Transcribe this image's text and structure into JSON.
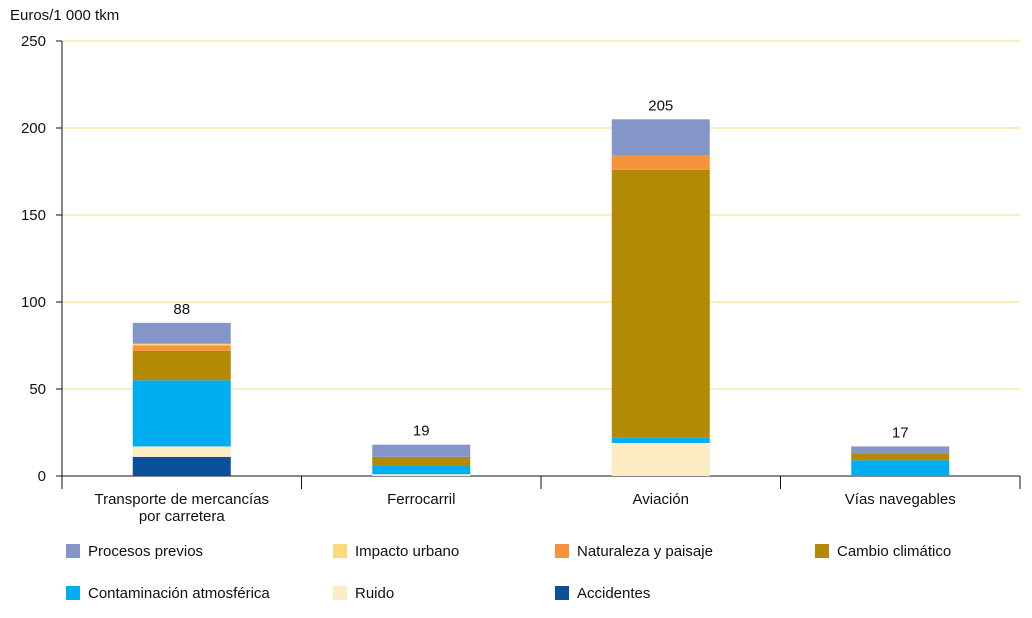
{
  "chart_data": {
    "type": "bar",
    "stacked": true,
    "ylabel": "Euros/1 000  tkm",
    "ylim": [
      0,
      250
    ],
    "yticks": [
      0,
      50,
      100,
      150,
      200,
      250
    ],
    "grid": true,
    "categories": [
      "Transporte de mercancías\npor carretera",
      "Ferrocarril",
      "Aviación",
      "Vías navegables"
    ],
    "totals": [
      "88",
      "19",
      "205",
      "17"
    ],
    "series": [
      {
        "name": "Accidentes",
        "color": "#0b4f9c",
        "values": [
          11,
          0,
          0,
          0
        ]
      },
      {
        "name": "Ruido",
        "color": "#fcecc4",
        "values": [
          6,
          1,
          19,
          0
        ]
      },
      {
        "name": "Contaminación atmosférica",
        "color": "#00aeef",
        "values": [
          38,
          5,
          3,
          9
        ]
      },
      {
        "name": "Cambio climático",
        "color": "#b38a05",
        "values": [
          17,
          5,
          154,
          4
        ]
      },
      {
        "name": "Naturaleza y paisaje",
        "color": "#f7943b",
        "values": [
          3,
          0,
          8,
          0
        ]
      },
      {
        "name": "Impacto urbano",
        "color": "#fcd97c",
        "values": [
          1,
          0,
          0,
          0
        ]
      },
      {
        "name": "Procesos previos",
        "color": "#8496c8",
        "values": [
          12,
          7,
          21,
          4
        ]
      }
    ],
    "legend": {
      "placement": "bottom",
      "order": [
        "Procesos previos",
        "Impacto urbano",
        "Naturaleza y paisaje",
        "Cambio climático",
        "Contaminación atmosférica",
        "Ruido",
        "Accidentes"
      ]
    },
    "colors": {
      "grid": "#f5df7a",
      "axis": "#111111"
    }
  }
}
